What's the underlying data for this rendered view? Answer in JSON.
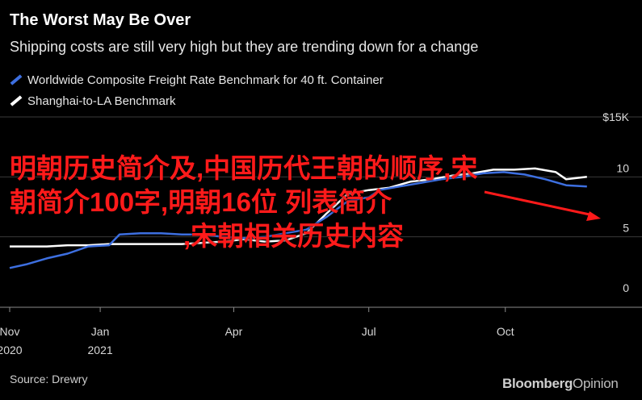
{
  "title": "The Worst May Be Over",
  "subtitle": "Shipping costs are still very high but they are trending down for a change",
  "source": "Source: Drewry",
  "brand": {
    "main": "Bloomberg",
    "sub": "Opinion"
  },
  "overlay": {
    "line1": "明朝历史简介及,中国历代王朝的顺序,宋",
    "line2": "朝简介100字,明朝16位 列表简介",
    "line3": ",宋朝相关历史内容"
  },
  "colors": {
    "background": "#000000",
    "worldwide": "#3d6fe0",
    "shanghai": "#ffffff",
    "grid": "#3a3a3a",
    "overlay_text": "#ff1a1a",
    "arrow": "#ff1a1a"
  },
  "chart_data": {
    "type": "line",
    "x_axis": {
      "start": "2020-11-01",
      "end": "2021-11-30",
      "ticks": [
        {
          "date": "2020-11-01",
          "label": [
            "Nov",
            "2020"
          ]
        },
        {
          "date": "2021-01-01",
          "label": [
            "Jan",
            "2021"
          ]
        },
        {
          "date": "2021-04-01",
          "label": [
            "Apr"
          ]
        },
        {
          "date": "2021-07-01",
          "label": [
            "Jul"
          ]
        },
        {
          "date": "2021-10-01",
          "label": [
            "Oct"
          ]
        }
      ]
    },
    "y_axis": {
      "min": 0,
      "max": 15,
      "unit_label": "$15K",
      "ticks": [
        {
          "value": 0,
          "label": "0"
        },
        {
          "value": 5,
          "label": "5"
        },
        {
          "value": 10,
          "label": "10"
        },
        {
          "value": 15,
          "label": "$15K"
        }
      ]
    },
    "series": [
      {
        "name": "Worldwide Composite Freight Rate Benchmark for 40 ft. Container",
        "color": "#3d6fe0",
        "x": [
          "2020-11-01",
          "2020-11-12",
          "2020-11-26",
          "2020-12-10",
          "2020-12-24",
          "2021-01-07",
          "2021-01-14",
          "2021-01-28",
          "2021-02-11",
          "2021-02-25",
          "2021-03-11",
          "2021-03-25",
          "2021-04-08",
          "2021-04-22",
          "2021-05-06",
          "2021-05-20",
          "2021-06-03",
          "2021-06-17",
          "2021-07-01",
          "2021-07-08",
          "2021-07-22",
          "2021-08-05",
          "2021-08-19",
          "2021-09-02",
          "2021-09-16",
          "2021-09-30",
          "2021-10-14",
          "2021-10-28",
          "2021-11-11",
          "2021-11-25"
        ],
        "y": [
          2.4,
          2.7,
          3.2,
          3.6,
          4.2,
          4.3,
          5.2,
          5.3,
          5.3,
          5.2,
          5.2,
          5.0,
          4.9,
          5.0,
          5.3,
          5.6,
          6.7,
          8.0,
          8.3,
          8.9,
          9.2,
          9.5,
          9.8,
          10.0,
          10.3,
          10.4,
          10.2,
          9.8,
          9.3,
          9.2
        ]
      },
      {
        "name": "Shanghai-to-LA Benchmark",
        "color": "#ffffff",
        "x": [
          "2020-11-01",
          "2020-11-26",
          "2020-12-10",
          "2020-12-24",
          "2021-01-07",
          "2021-01-21",
          "2021-02-04",
          "2021-02-25",
          "2021-03-11",
          "2021-03-25",
          "2021-04-08",
          "2021-04-22",
          "2021-05-06",
          "2021-05-20",
          "2021-06-03",
          "2021-06-17",
          "2021-07-01",
          "2021-07-15",
          "2021-07-29",
          "2021-08-12",
          "2021-08-26",
          "2021-09-09",
          "2021-09-23",
          "2021-10-07",
          "2021-10-21",
          "2021-11-04",
          "2021-11-11",
          "2021-11-25"
        ],
        "y": [
          4.2,
          4.2,
          4.3,
          4.3,
          4.4,
          4.4,
          4.4,
          4.4,
          4.5,
          4.6,
          4.8,
          4.6,
          4.7,
          5.3,
          7.0,
          8.6,
          8.9,
          9.1,
          9.6,
          9.8,
          10.1,
          10.3,
          10.6,
          10.6,
          10.7,
          10.4,
          9.8,
          10.0
        ]
      }
    ],
    "grid": true,
    "legend": "top-left"
  }
}
